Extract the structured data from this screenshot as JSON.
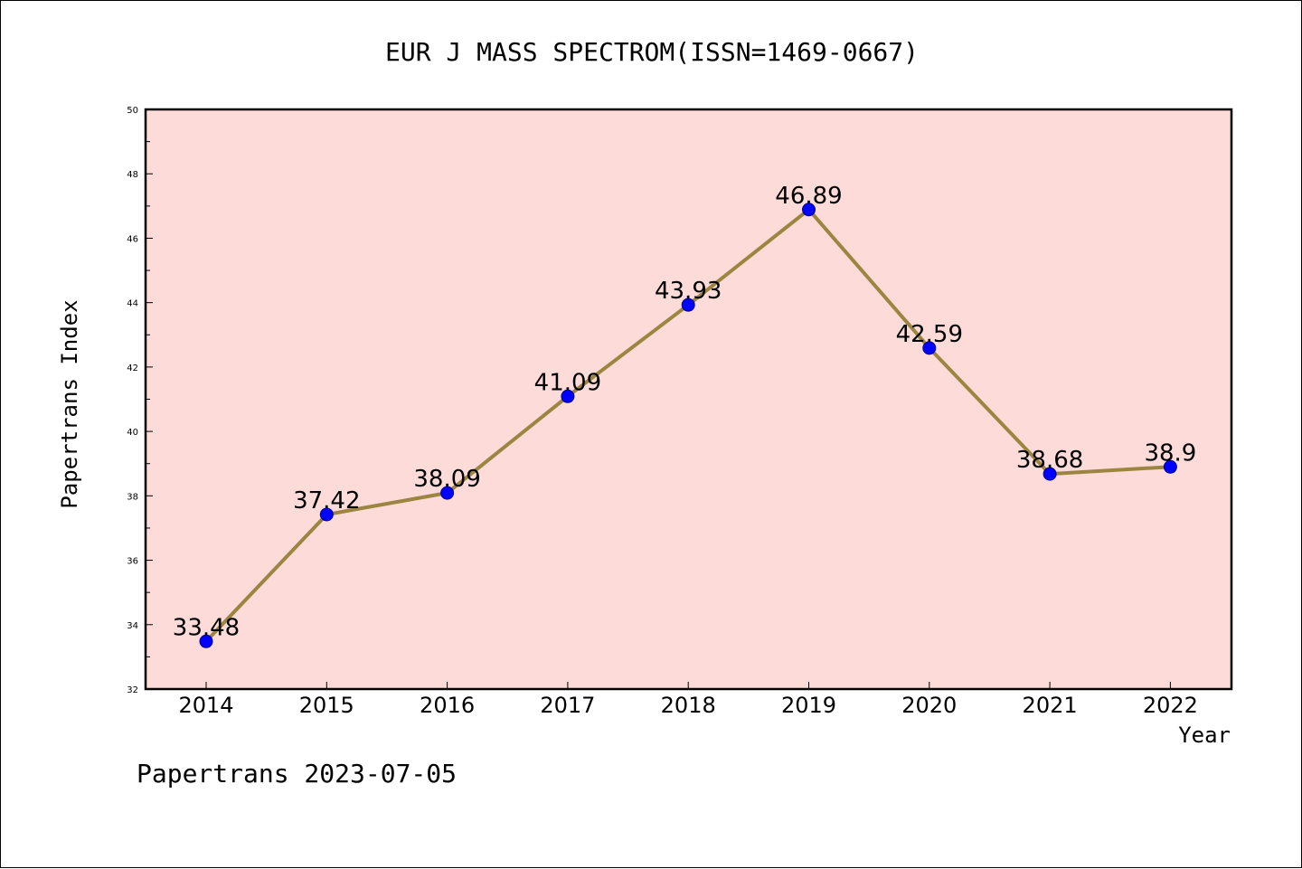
{
  "chart_data": {
    "type": "line",
    "title": "EUR J MASS SPECTROM(ISSN=1469-0667)",
    "xlabel": "Year",
    "ylabel": "Papertrans Index",
    "categories": [
      "2014",
      "2015",
      "2016",
      "2017",
      "2018",
      "2019",
      "2020",
      "2021",
      "2022"
    ],
    "series": [
      {
        "values": [
          33.48,
          37.42,
          38.09,
          41.09,
          43.93,
          46.89,
          42.59,
          38.68,
          38.9
        ],
        "labels": [
          "33.48",
          "37.42",
          "38.09",
          "41.09",
          "43.93",
          "46.89",
          "42.59",
          "38.68",
          "38.9"
        ],
        "line_color": "#9c8540",
        "marker_color": "#0000ff"
      }
    ],
    "ylim": [
      32,
      50
    ],
    "yticks": [
      "32",
      "34",
      "36",
      "38",
      "40",
      "42",
      "44",
      "46",
      "48",
      "50"
    ],
    "plot_background": "#fddbd8",
    "grid": false,
    "legend": "none"
  },
  "footer": "Papertrans 2023-07-05"
}
